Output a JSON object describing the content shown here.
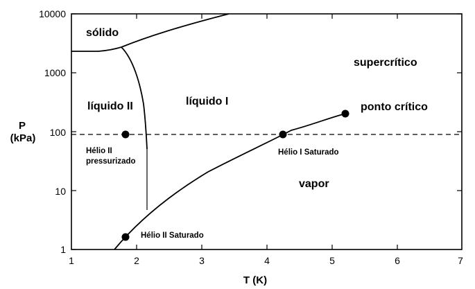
{
  "y_axis": {
    "label_line1": "P",
    "label_line2": "(kPa)",
    "ticks": [
      {
        "label": "1",
        "value": 1
      },
      {
        "label": "10",
        "value": 10
      },
      {
        "label": "100",
        "value": 100
      },
      {
        "label": "1000",
        "value": 1000
      },
      {
        "label": "10000",
        "value": 10000
      }
    ],
    "scale": "log",
    "range": [
      1,
      10000
    ]
  },
  "x_axis": {
    "label": "T (K)",
    "ticks": [
      {
        "label": "1",
        "value": 1
      },
      {
        "label": "2",
        "value": 2
      },
      {
        "label": "3",
        "value": 3
      },
      {
        "label": "4",
        "value": 4
      },
      {
        "label": "5",
        "value": 5
      },
      {
        "label": "6",
        "value": 6
      },
      {
        "label": "7",
        "value": 7
      }
    ],
    "range": [
      1,
      7
    ]
  },
  "regions": {
    "solid": "sólido",
    "supercritical": "supercrítico",
    "liquid_ii": "líquido II",
    "liquid_i": "líquido I",
    "critical_point": "ponto crítico",
    "vapor": "vapor"
  },
  "annotations": {
    "helium_ii_pressurized_line1": "Hélio II",
    "helium_ii_pressurized_line2": "pressurizado",
    "helium_i_saturated": "Hélio I Saturado",
    "helium_ii_saturated": "Hélio II Saturado"
  },
  "points": {
    "helium_ii_pressurized": {
      "T": 1.85,
      "P": 100
    },
    "helium_i_saturated": {
      "T": 4.25,
      "P": 100
    },
    "critical_point": {
      "T": 5.2,
      "P": 227
    },
    "helium_ii_saturated": {
      "T": 1.8,
      "P": 1.7
    }
  },
  "reference_pressure": 100
}
